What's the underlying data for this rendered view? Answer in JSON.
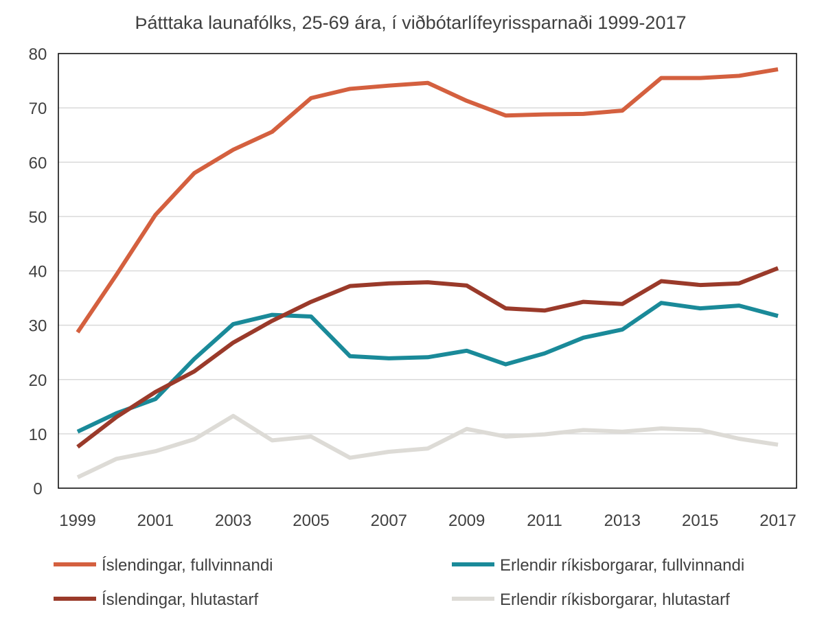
{
  "chart_data": {
    "type": "line",
    "title": "Þátttaka launafólks, 25-69 ára, í viðbótarlífeyrissparnaði 1999-2017",
    "xlabel": "",
    "ylabel": "",
    "ylim": [
      0,
      80
    ],
    "yticks": [
      "0",
      "10",
      "20",
      "30",
      "40",
      "50",
      "60",
      "70",
      "80"
    ],
    "x": [
      1999,
      2000,
      2001,
      2002,
      2003,
      2004,
      2005,
      2006,
      2007,
      2008,
      2009,
      2010,
      2011,
      2012,
      2013,
      2014,
      2015,
      2016,
      2017
    ],
    "xticks": [
      "1999",
      "2001",
      "2003",
      "2005",
      "2007",
      "2009",
      "2011",
      "2013",
      "2015",
      "2017"
    ],
    "grid": "horizontal",
    "legend_position": "bottom",
    "series": [
      {
        "name": "Íslendingar, fullvinnandi",
        "color": "#d4603f",
        "values": [
          28.7,
          39.3,
          50.3,
          58.0,
          62.3,
          65.6,
          71.8,
          73.5,
          74.1,
          74.6,
          71.3,
          68.6,
          68.8,
          68.9,
          69.5,
          75.5,
          75.5,
          75.9,
          77.1
        ]
      },
      {
        "name": "Erlendir ríkisborgarar,  fullvinnandi",
        "color": "#1a8a99",
        "values": [
          10.4,
          13.8,
          16.4,
          23.8,
          30.2,
          31.9,
          31.6,
          24.3,
          23.9,
          24.1,
          25.3,
          22.8,
          24.8,
          27.7,
          29.2,
          34.1,
          33.1,
          33.6,
          31.7
        ]
      },
      {
        "name": "Íslendingar, hlutastarf",
        "color": "#9a3a2a",
        "values": [
          7.6,
          13.1,
          17.7,
          21.5,
          26.8,
          30.8,
          34.3,
          37.2,
          37.7,
          37.9,
          37.3,
          33.1,
          32.7,
          34.3,
          33.9,
          38.1,
          37.4,
          37.7,
          40.5
        ]
      },
      {
        "name": "Erlendir ríkisborgarar, hlutastarf",
        "color": "#dddbd6",
        "values": [
          2.0,
          5.4,
          6.8,
          9.0,
          13.3,
          8.8,
          9.5,
          5.6,
          6.7,
          7.3,
          10.9,
          9.5,
          9.9,
          10.7,
          10.4,
          11.0,
          10.7,
          9.1,
          8.0
        ]
      }
    ]
  }
}
